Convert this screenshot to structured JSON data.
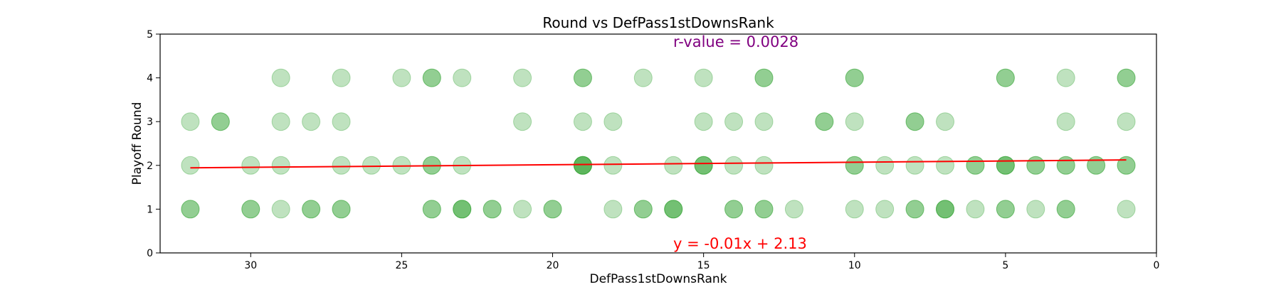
{
  "chart_data": {
    "type": "scatter",
    "title": "Round vs DefPass1stDownsRank",
    "xlabel": "DefPass1stDownsRank",
    "ylabel": "Playoff Round",
    "xlim": [
      33,
      0
    ],
    "ylim": [
      0,
      5
    ],
    "x_ticks": [
      30,
      25,
      20,
      15,
      10,
      5,
      0
    ],
    "y_ticks": [
      0,
      1,
      2,
      3,
      4,
      5
    ],
    "grid": false,
    "point_color": "#2ca02c",
    "line_color": "#ff0000",
    "annotation_color": "#800080",
    "annotations": {
      "r_value": "r-value = 0.0028",
      "equation": "y = -0.01x + 2.13"
    },
    "regression": {
      "slope": -0.0058,
      "intercept": 2.13
    },
    "points": [
      {
        "x": 29,
        "y": 4,
        "count": 1
      },
      {
        "x": 27,
        "y": 4,
        "count": 1
      },
      {
        "x": 25,
        "y": 4,
        "count": 1
      },
      {
        "x": 24,
        "y": 4,
        "count": 2
      },
      {
        "x": 23,
        "y": 4,
        "count": 1
      },
      {
        "x": 21,
        "y": 4,
        "count": 1
      },
      {
        "x": 19,
        "y": 4,
        "count": 2
      },
      {
        "x": 17,
        "y": 4,
        "count": 1
      },
      {
        "x": 15,
        "y": 4,
        "count": 1
      },
      {
        "x": 13,
        "y": 4,
        "count": 2
      },
      {
        "x": 10,
        "y": 4,
        "count": 2
      },
      {
        "x": 5,
        "y": 4,
        "count": 2
      },
      {
        "x": 3,
        "y": 4,
        "count": 1
      },
      {
        "x": 1,
        "y": 4,
        "count": 2
      },
      {
        "x": 32,
        "y": 3,
        "count": 1
      },
      {
        "x": 31,
        "y": 3,
        "count": 2
      },
      {
        "x": 29,
        "y": 3,
        "count": 1
      },
      {
        "x": 28,
        "y": 3,
        "count": 1
      },
      {
        "x": 27,
        "y": 3,
        "count": 1
      },
      {
        "x": 21,
        "y": 3,
        "count": 1
      },
      {
        "x": 19,
        "y": 3,
        "count": 1
      },
      {
        "x": 18,
        "y": 3,
        "count": 1
      },
      {
        "x": 15,
        "y": 3,
        "count": 1
      },
      {
        "x": 14,
        "y": 3,
        "count": 1
      },
      {
        "x": 13,
        "y": 3,
        "count": 1
      },
      {
        "x": 11,
        "y": 3,
        "count": 2
      },
      {
        "x": 10,
        "y": 3,
        "count": 1
      },
      {
        "x": 8,
        "y": 3,
        "count": 2
      },
      {
        "x": 7,
        "y": 3,
        "count": 1
      },
      {
        "x": 3,
        "y": 3,
        "count": 1
      },
      {
        "x": 1,
        "y": 3,
        "count": 1
      },
      {
        "x": 32,
        "y": 2,
        "count": 1
      },
      {
        "x": 30,
        "y": 2,
        "count": 1
      },
      {
        "x": 29,
        "y": 2,
        "count": 1
      },
      {
        "x": 27,
        "y": 2,
        "count": 1
      },
      {
        "x": 26,
        "y": 2,
        "count": 1
      },
      {
        "x": 25,
        "y": 2,
        "count": 1
      },
      {
        "x": 24,
        "y": 2,
        "count": 2
      },
      {
        "x": 23,
        "y": 2,
        "count": 1
      },
      {
        "x": 19,
        "y": 2,
        "count": 4
      },
      {
        "x": 18,
        "y": 2,
        "count": 1
      },
      {
        "x": 16,
        "y": 2,
        "count": 1
      },
      {
        "x": 15,
        "y": 2,
        "count": 3
      },
      {
        "x": 14,
        "y": 2,
        "count": 1
      },
      {
        "x": 13,
        "y": 2,
        "count": 1
      },
      {
        "x": 10,
        "y": 2,
        "count": 2
      },
      {
        "x": 9,
        "y": 2,
        "count": 1
      },
      {
        "x": 8,
        "y": 2,
        "count": 1
      },
      {
        "x": 7,
        "y": 2,
        "count": 1
      },
      {
        "x": 6,
        "y": 2,
        "count": 2
      },
      {
        "x": 5,
        "y": 2,
        "count": 3
      },
      {
        "x": 4,
        "y": 2,
        "count": 2
      },
      {
        "x": 3,
        "y": 2,
        "count": 2
      },
      {
        "x": 2,
        "y": 2,
        "count": 2
      },
      {
        "x": 1,
        "y": 2,
        "count": 2
      },
      {
        "x": 32,
        "y": 1,
        "count": 2
      },
      {
        "x": 30,
        "y": 1,
        "count": 2
      },
      {
        "x": 29,
        "y": 1,
        "count": 1
      },
      {
        "x": 28,
        "y": 1,
        "count": 2
      },
      {
        "x": 27,
        "y": 1,
        "count": 2
      },
      {
        "x": 24,
        "y": 1,
        "count": 2
      },
      {
        "x": 23,
        "y": 1,
        "count": 3
      },
      {
        "x": 22,
        "y": 1,
        "count": 2
      },
      {
        "x": 21,
        "y": 1,
        "count": 1
      },
      {
        "x": 20,
        "y": 1,
        "count": 2
      },
      {
        "x": 18,
        "y": 1,
        "count": 1
      },
      {
        "x": 17,
        "y": 1,
        "count": 2
      },
      {
        "x": 16,
        "y": 1,
        "count": 3
      },
      {
        "x": 14,
        "y": 1,
        "count": 2
      },
      {
        "x": 13,
        "y": 1,
        "count": 2
      },
      {
        "x": 12,
        "y": 1,
        "count": 1
      },
      {
        "x": 10,
        "y": 1,
        "count": 1
      },
      {
        "x": 9,
        "y": 1,
        "count": 1
      },
      {
        "x": 8,
        "y": 1,
        "count": 2
      },
      {
        "x": 7,
        "y": 1,
        "count": 3
      },
      {
        "x": 6,
        "y": 1,
        "count": 1
      },
      {
        "x": 5,
        "y": 1,
        "count": 2
      },
      {
        "x": 4,
        "y": 1,
        "count": 1
      },
      {
        "x": 3,
        "y": 1,
        "count": 2
      },
      {
        "x": 1,
        "y": 1,
        "count": 1
      }
    ]
  }
}
